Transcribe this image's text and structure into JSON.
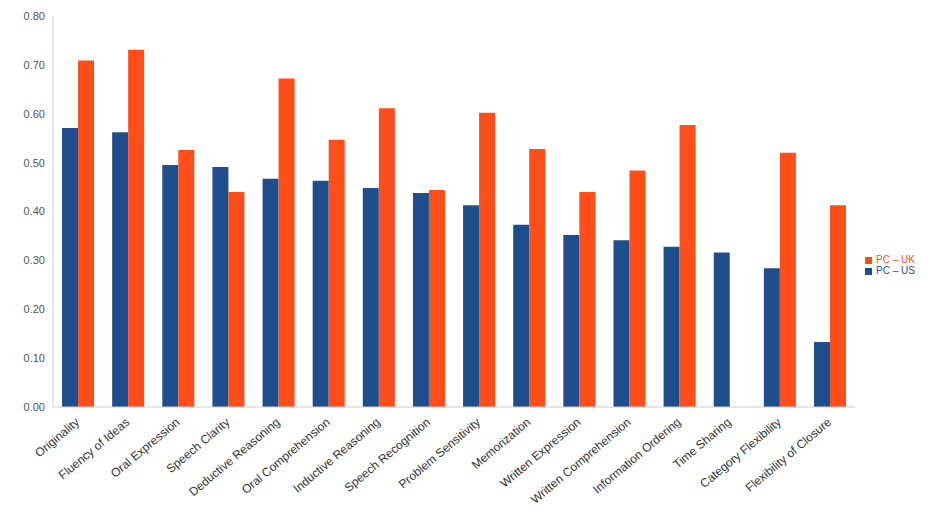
{
  "chart_data": {
    "type": "bar",
    "categories": [
      "Originality",
      "Fluency of Ideas",
      "Oral Expression",
      "Speech Clarity",
      "Deductive Reasoning",
      "Oral Comprehension",
      "Inductive Reasoning",
      "Speech Recognition",
      "Problem Sensitivity",
      "Memorization",
      "Written Expression",
      "Written Comprehension",
      "Information Ordering",
      "Time Sharing",
      "Category Flexibility",
      "Flexibility of Closure"
    ],
    "series": [
      {
        "name": "PC – US",
        "color": "#1f4e8c",
        "values": [
          0.571,
          0.562,
          0.495,
          0.491,
          0.467,
          0.463,
          0.448,
          0.438,
          0.413,
          0.373,
          0.352,
          0.341,
          0.328,
          0.316,
          0.284,
          0.133
        ]
      },
      {
        "name": "PC – UK",
        "color": "#ff4e1a",
        "values": [
          0.709,
          0.731,
          0.526,
          0.44,
          0.672,
          0.547,
          0.611,
          0.444,
          0.602,
          0.528,
          0.44,
          0.484,
          0.577,
          null,
          0.52,
          0.413
        ]
      }
    ],
    "ylim": [
      0,
      0.8
    ],
    "yticks": [
      {
        "value": 0,
        "label": "0.00"
      },
      {
        "value": 0.1,
        "label": "0.10"
      },
      {
        "value": 0.2,
        "label": "0.20"
      },
      {
        "value": 0.3,
        "label": "0.30"
      },
      {
        "value": 0.4,
        "label": "0.40"
      },
      {
        "value": 0.5,
        "label": "0.50"
      },
      {
        "value": 0.6,
        "label": "0.60"
      },
      {
        "value": 0.7,
        "label": "0.70"
      },
      {
        "value": 0.8,
        "label": "0.80"
      }
    ],
    "grid": false,
    "legend": "right"
  }
}
